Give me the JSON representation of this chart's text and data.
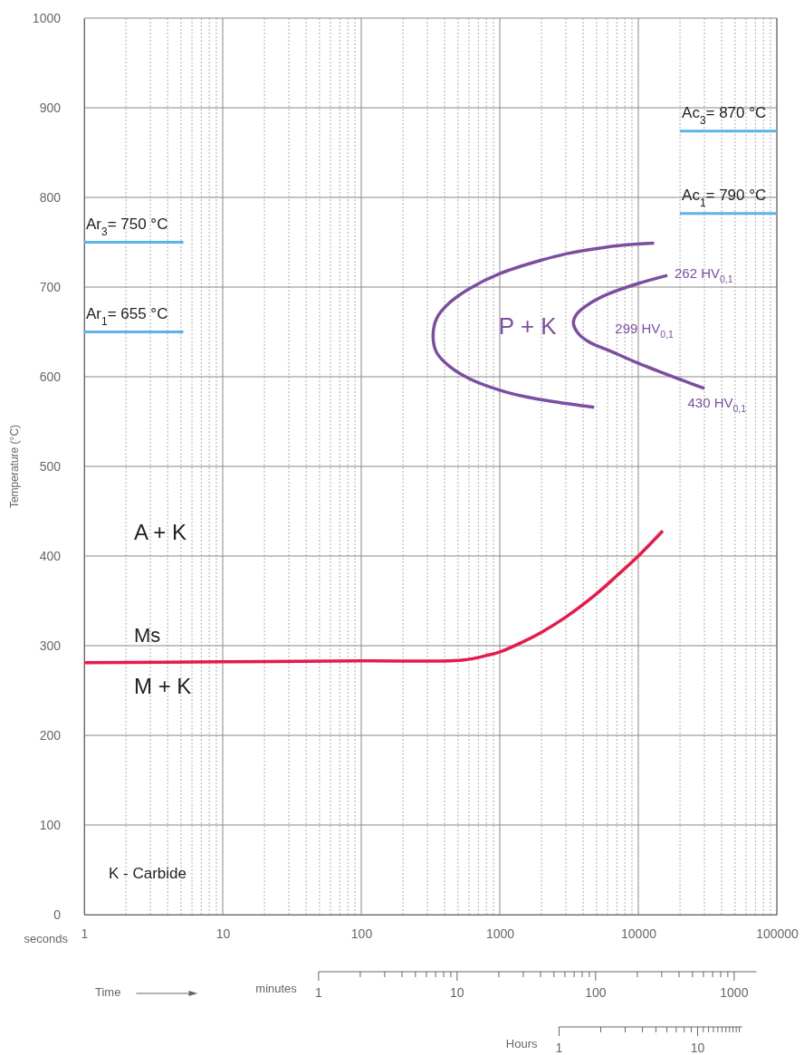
{
  "chart_data": {
    "type": "line",
    "xlabel": "seconds",
    "ylabel": "Temperature (°C)",
    "log": "x",
    "grid": true,
    "line_style": "solid",
    "marker": "none",
    "xlim": [
      1,
      100000
    ],
    "xticks": [
      1,
      10,
      100,
      1000,
      10000,
      100000
    ],
    "ylim": [
      0,
      1000
    ],
    "yticks": [
      0,
      100,
      200,
      300,
      400,
      500,
      600,
      700,
      800,
      900,
      1000
    ],
    "series": [
      {
        "name": "Ar$_{3}$= 750 °C",
        "color": "#5ab4e5",
        "x": [
          1,
          5.2
        ],
        "values": [
          750,
          750
        ]
      },
      {
        "name": "Ar$_{1}$= 655 °C",
        "color": "#5ab4e5",
        "x": [
          1,
          5.2
        ],
        "values": [
          650,
          650
        ]
      },
      {
        "name": "Ac$_{3}$= 870 °C",
        "color": "#5ab4e5",
        "x": [
          20000,
          100000
        ],
        "values": [
          874,
          874
        ]
      },
      {
        "name": "Ac$_{1}$= 790 °C",
        "color": "#5ab4e5",
        "x": [
          20000,
          100000
        ],
        "values": [
          782,
          782
        ]
      },
      {
        "color": "#7b4fa0",
        "x": [
          13000,
          8000,
          5000,
          3000,
          2000,
          1000,
          600,
          430,
          350,
          330,
          350,
          430,
          600,
          1000,
          1500,
          2500,
          4800
        ],
        "values": [
          749,
          747,
          743,
          737,
          730,
          715,
          698,
          682,
          665,
          645,
          627,
          612,
          598,
          585,
          578,
          572,
          566
        ]
      },
      {
        "color": "#7b4fa0",
        "x": [
          16200,
          10000,
          6000,
          4500,
          3600,
          3400,
          3700,
          4500,
          6000,
          10000,
          20000,
          30000
        ],
        "values": [
          713,
          704,
          692,
          682,
          670,
          660,
          648,
          638,
          630,
          615,
          597,
          587
        ]
      },
      {
        "color": "#e8194b",
        "x": [
          1,
          10,
          100,
          550,
          800,
          1000,
          1500,
          2000,
          3000,
          5000,
          7000,
          10000,
          15000
        ],
        "values": [
          281,
          282,
          283,
          284,
          289,
          293,
          305,
          315,
          332,
          358,
          378,
          400,
          428
        ]
      }
    ],
    "annotations": [
      "262 HV$_{0,1}$",
      "299 HV$_{0,1}$",
      "430 HV$_{0,1}$",
      "P + K",
      "A + K",
      "Ms",
      "M + K",
      "K - Carbide",
      "Time",
      "Hours",
      "1",
      "10",
      "minutes",
      "1",
      "10",
      "100",
      "1000"
    ]
  }
}
